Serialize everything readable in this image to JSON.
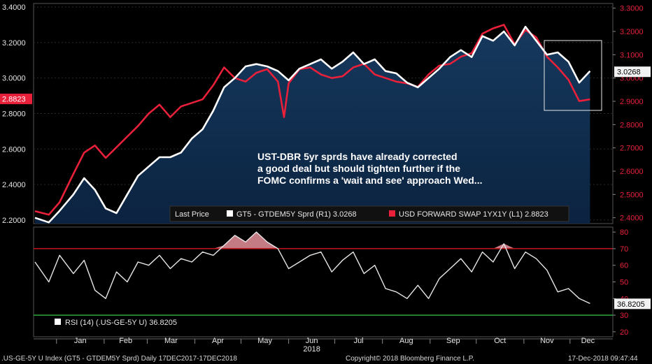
{
  "footer": {
    "security": ".US-GE-5Y U Index (GT5 - GTDEM5Y Sprd)  Daily 17DEC2017-17DEC2018",
    "copyright": "Copyright© 2018 Bloomberg Finance L.P.",
    "timestamp": "17-Dec-2018 09:47:44"
  },
  "colors": {
    "spread": "#ffffff",
    "swap": "#e8203a",
    "area_top": "#16395e",
    "area_bottom": "#0b2340",
    "rsi": "#e6e6e6",
    "overbought": "#c0141c",
    "oversold": "#2aa83a",
    "axis_text": "#e6e6e6",
    "right_axis_text": "#e8203a"
  },
  "chart_data": [
    {
      "type": "line",
      "annotation": "UST-DBR 5yr sprds have already corrected\na good deal but should tighten further if the\nFOMC confirms a 'wait and see' approach Wed...",
      "x_months": [
        "Jan",
        "Feb",
        "Mar",
        "Apr",
        "May",
        "Jun",
        "Jul",
        "Aug",
        "Sep",
        "Oct",
        "Nov",
        "Dec"
      ],
      "x_year": "2018",
      "legend_title": "Last Price",
      "left_axis": {
        "ticks": [
          "2.2000",
          "2.4000",
          "2.6000",
          "2.8000",
          "3.0000",
          "3.2000",
          "3.4000"
        ],
        "ylim": [
          2.18,
          3.42
        ],
        "last_label": "2.8823"
      },
      "right_axis": {
        "ticks": [
          "2.4000",
          "2.5000",
          "2.6000",
          "2.7000",
          "2.8000",
          "2.9000",
          "3.0000",
          "3.1000",
          "3.2000",
          "3.3000"
        ],
        "ylim": [
          2.375,
          3.32
        ],
        "last_label": "3.0268"
      },
      "series": [
        {
          "name": "GT5 - GTDEM5Y Sprd  (R1) 3.0268",
          "axis": "right",
          "x": [
            "2017-12-18",
            "2017-12-27",
            "2018-01-03",
            "2018-01-12",
            "2018-01-19",
            "2018-01-26",
            "2018-02-02",
            "2018-02-09",
            "2018-02-16",
            "2018-02-23",
            "2018-03-02",
            "2018-03-09",
            "2018-03-16",
            "2018-03-23",
            "2018-03-30",
            "2018-04-06",
            "2018-04-13",
            "2018-04-20",
            "2018-04-27",
            "2018-05-04",
            "2018-05-11",
            "2018-05-18",
            "2018-05-25",
            "2018-06-01",
            "2018-06-08",
            "2018-06-15",
            "2018-06-22",
            "2018-06-29",
            "2018-07-06",
            "2018-07-13",
            "2018-07-20",
            "2018-07-27",
            "2018-08-03",
            "2018-08-10",
            "2018-08-17",
            "2018-08-24",
            "2018-08-31",
            "2018-09-07",
            "2018-09-14",
            "2018-09-21",
            "2018-09-28",
            "2018-10-05",
            "2018-10-12",
            "2018-10-19",
            "2018-10-26",
            "2018-11-02",
            "2018-11-09",
            "2018-11-16",
            "2018-11-23",
            "2018-11-30",
            "2018-12-07",
            "2018-12-14"
          ],
          "values": [
            2.4,
            2.38,
            2.43,
            2.5,
            2.57,
            2.52,
            2.44,
            2.42,
            2.5,
            2.58,
            2.62,
            2.66,
            2.66,
            2.68,
            2.74,
            2.78,
            2.86,
            2.96,
            3.0,
            3.05,
            3.06,
            3.05,
            3.03,
            2.99,
            3.04,
            3.06,
            3.08,
            3.04,
            3.07,
            3.11,
            3.06,
            3.08,
            3.03,
            3.02,
            2.98,
            2.96,
            3.0,
            3.04,
            3.09,
            3.12,
            3.09,
            3.18,
            3.16,
            3.2,
            3.14,
            3.22,
            3.16,
            3.1,
            3.11,
            3.07,
            2.98,
            3.03
          ]
        },
        {
          "name": "USD FORWARD SWAP 1YX1Y  (L1) 2.8823",
          "axis": "left",
          "x": [
            "2017-12-18",
            "2017-12-27",
            "2018-01-03",
            "2018-01-12",
            "2018-01-19",
            "2018-01-26",
            "2018-02-02",
            "2018-02-09",
            "2018-02-16",
            "2018-02-23",
            "2018-03-02",
            "2018-03-09",
            "2018-03-16",
            "2018-03-23",
            "2018-03-30",
            "2018-04-06",
            "2018-04-13",
            "2018-04-20",
            "2018-04-27",
            "2018-05-04",
            "2018-05-11",
            "2018-05-18",
            "2018-05-25",
            "2018-05-29",
            "2018-06-01",
            "2018-06-08",
            "2018-06-15",
            "2018-06-22",
            "2018-06-29",
            "2018-07-06",
            "2018-07-13",
            "2018-07-20",
            "2018-07-27",
            "2018-08-03",
            "2018-08-10",
            "2018-08-17",
            "2018-08-24",
            "2018-08-31",
            "2018-09-07",
            "2018-09-14",
            "2018-09-21",
            "2018-09-28",
            "2018-10-05",
            "2018-10-12",
            "2018-10-19",
            "2018-10-26",
            "2018-11-02",
            "2018-11-09",
            "2018-11-16",
            "2018-11-23",
            "2018-11-30",
            "2018-12-07",
            "2018-12-14"
          ],
          "values": [
            2.25,
            2.23,
            2.3,
            2.46,
            2.58,
            2.62,
            2.55,
            2.61,
            2.67,
            2.73,
            2.8,
            2.85,
            2.78,
            2.84,
            2.86,
            2.88,
            2.96,
            3.06,
            3.0,
            2.98,
            3.03,
            3.05,
            2.98,
            2.78,
            2.97,
            3.05,
            3.06,
            3.02,
            3.0,
            3.01,
            3.06,
            3.08,
            3.02,
            3.0,
            2.98,
            2.97,
            2.95,
            3.02,
            3.07,
            3.08,
            3.12,
            3.14,
            3.25,
            3.28,
            3.3,
            3.19,
            3.27,
            3.23,
            3.12,
            3.06,
            2.99,
            2.87,
            2.88
          ]
        }
      ]
    },
    {
      "type": "line",
      "legend": "RSI (14) (.US-GE-5Y U) 36.8205",
      "last_label": "36.8205",
      "y_ticks": [
        20,
        30,
        40,
        50,
        60,
        70,
        80
      ],
      "ylim": [
        17,
        83
      ],
      "overbought": 70,
      "oversold": 30,
      "series": [
        {
          "name": "RSI (14) (.US-GE-5Y U) 36.8205",
          "x": [
            "2017-12-18",
            "2017-12-27",
            "2018-01-03",
            "2018-01-12",
            "2018-01-19",
            "2018-01-26",
            "2018-02-02",
            "2018-02-09",
            "2018-02-16",
            "2018-02-23",
            "2018-03-02",
            "2018-03-09",
            "2018-03-16",
            "2018-03-23",
            "2018-03-30",
            "2018-04-06",
            "2018-04-13",
            "2018-04-20",
            "2018-04-27",
            "2018-05-04",
            "2018-05-11",
            "2018-05-18",
            "2018-05-25",
            "2018-06-01",
            "2018-06-08",
            "2018-06-15",
            "2018-06-22",
            "2018-06-29",
            "2018-07-06",
            "2018-07-13",
            "2018-07-20",
            "2018-07-27",
            "2018-08-03",
            "2018-08-10",
            "2018-08-17",
            "2018-08-24",
            "2018-08-31",
            "2018-09-07",
            "2018-09-14",
            "2018-09-21",
            "2018-09-28",
            "2018-10-05",
            "2018-10-12",
            "2018-10-19",
            "2018-10-26",
            "2018-11-02",
            "2018-11-09",
            "2018-11-16",
            "2018-11-23",
            "2018-11-30",
            "2018-12-07",
            "2018-12-14"
          ],
          "values": [
            62,
            50,
            66,
            55,
            63,
            45,
            40,
            56,
            50,
            62,
            60,
            66,
            58,
            64,
            62,
            68,
            66,
            72,
            78,
            74,
            80,
            74,
            70,
            58,
            62,
            66,
            68,
            56,
            63,
            68,
            55,
            60,
            46,
            44,
            40,
            48,
            40,
            52,
            58,
            64,
            56,
            68,
            62,
            73,
            58,
            68,
            64,
            57,
            44,
            46,
            40,
            37
          ]
        }
      ]
    }
  ]
}
